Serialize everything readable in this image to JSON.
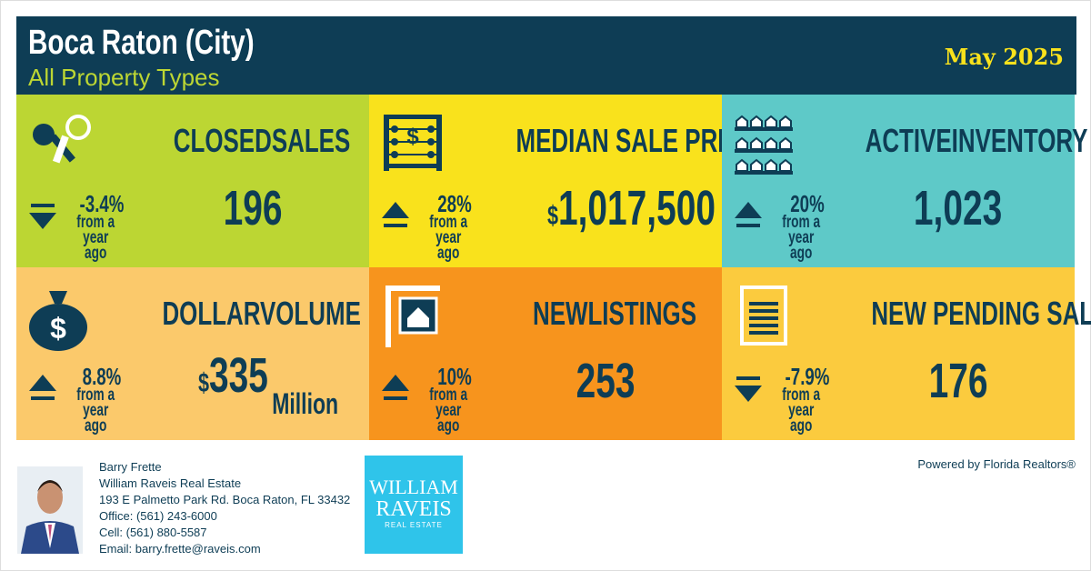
{
  "header": {
    "title": "Boca Raton (City)",
    "subtitle": "All Property Types",
    "date": "May 2025"
  },
  "tiles": [
    {
      "title": "CLOSEDSALES",
      "value": "196",
      "change": "-3.4%",
      "change_text": "from a year ago",
      "direction": "down",
      "color": "#bcd633",
      "icon": "keys"
    },
    {
      "title": "MEDIAN SALE PRICE",
      "currency": "$",
      "value": "1,017,500",
      "change": "28%",
      "change_text": "from a year ago",
      "direction": "up",
      "color": "#f9e21c",
      "icon": "abacus"
    },
    {
      "title": "ACTIVEINVENTORY",
      "value": "1,023",
      "change": "20%",
      "change_text": "from a year ago",
      "direction": "up",
      "color": "#5ec9c8",
      "icon": "shelves"
    },
    {
      "title": "DOLLARVOLUME",
      "currency": "$",
      "value": "335",
      "unit": "Million",
      "change": "8.8%",
      "change_text": "from a year ago",
      "direction": "up",
      "color": "#fbc96b",
      "icon": "bag"
    },
    {
      "title": "NEWLISTINGS",
      "value": "253",
      "change": "10%",
      "change_text": "from a year ago",
      "direction": "up",
      "color": "#f7941d",
      "icon": "sign"
    },
    {
      "title": "NEW PENDING SALES",
      "value": "176",
      "change": "-7.9%",
      "change_text": "from a year ago",
      "direction": "down",
      "color": "#fbcb3e",
      "icon": "doc"
    }
  ],
  "agent": {
    "name": "Barry Frette",
    "company": "William Raveis Real Estate",
    "address": "193 E Palmetto Park Rd. Boca Raton, FL 33432",
    "office": "Office: (561) 243-6000",
    "cell": "Cell: (561) 880-5587",
    "email": "Email: barry.frette@raveis.com"
  },
  "logo": {
    "line1": "WILLIAM",
    "line2": "RAVEIS",
    "line3": "REAL ESTATE"
  },
  "powered_by": "Powered by Florida Realtors®"
}
